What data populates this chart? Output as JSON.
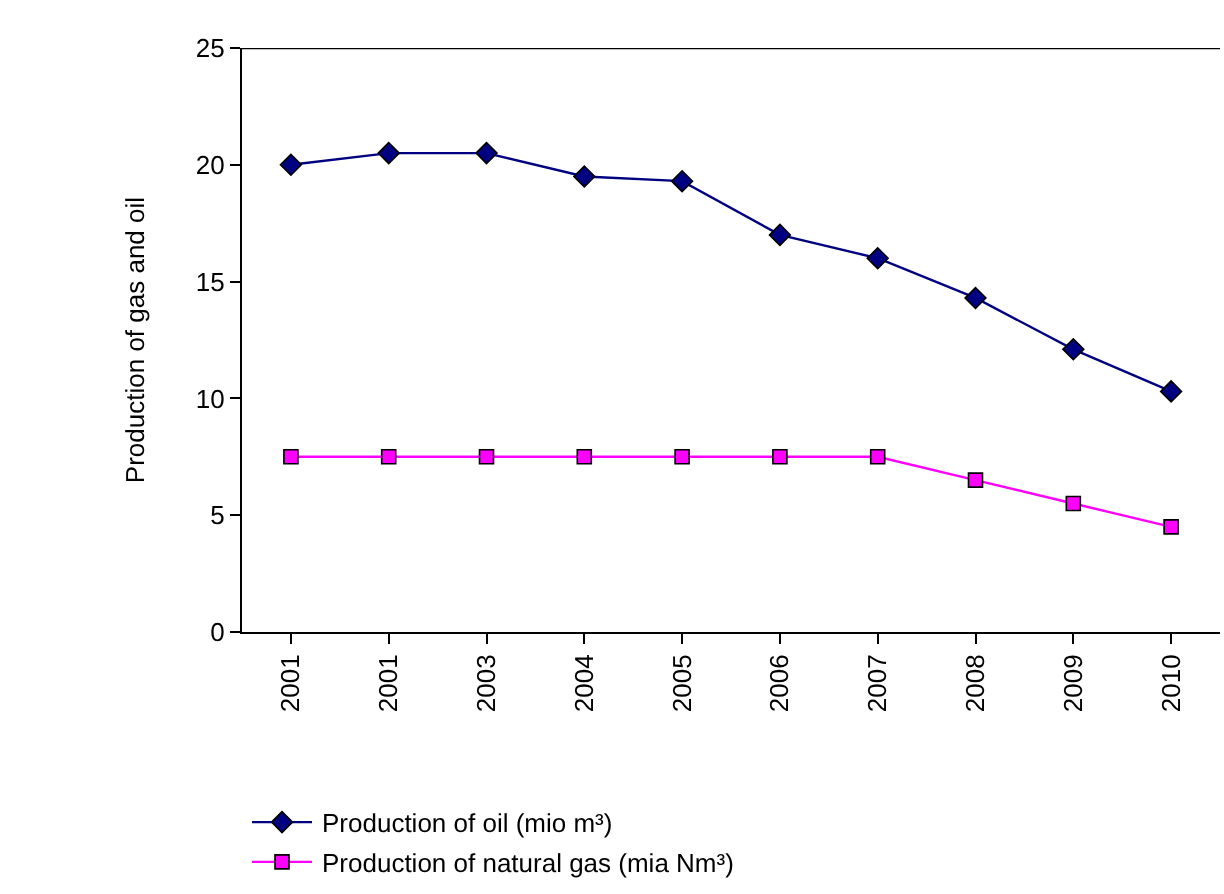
{
  "chart_data": {
    "type": "line",
    "ylabel": "Production of gas and oil",
    "categories": [
      "2001",
      "2001",
      "2003",
      "2004",
      "2005",
      "2006",
      "2007",
      "2008",
      "2009",
      "2010"
    ],
    "series": [
      {
        "name": "Production of oil (mio m³)",
        "color": "#000080",
        "marker": "diamond",
        "values": [
          20,
          20.5,
          20.5,
          19.5,
          19.3,
          17,
          16,
          14.3,
          12.1,
          10.3
        ]
      },
      {
        "name": "Production of natural gas (mia Nm³)",
        "color": "#ff00ff",
        "marker": "square",
        "values": [
          7.5,
          7.5,
          7.5,
          7.5,
          7.5,
          7.5,
          7.5,
          6.5,
          5.5,
          4.5
        ]
      }
    ],
    "ylim": [
      0,
      25
    ],
    "yticks": [
      0,
      5,
      10,
      15,
      20,
      25
    ],
    "grid": false,
    "legend": "bottom"
  }
}
